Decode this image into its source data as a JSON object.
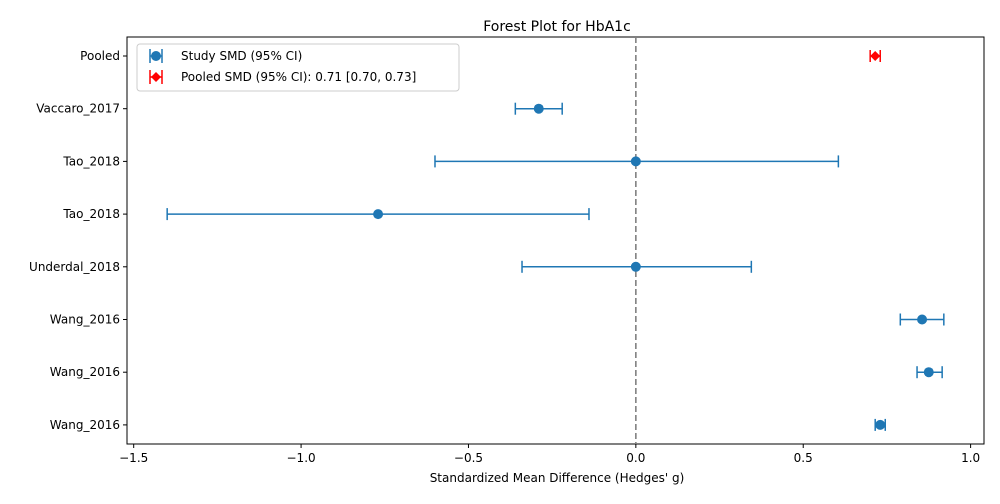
{
  "chart_data": {
    "type": "forest",
    "title": "Forest Plot for HbA1c",
    "xlabel": "Standardized Mean Difference (Hedges' g)",
    "ylabel": "",
    "xlim": [
      -1.52,
      1.04
    ],
    "xticks": [
      -1.5,
      -1.0,
      -0.5,
      0.0,
      0.5,
      1.0
    ],
    "xtick_labels": [
      "−1.5",
      "−1.0",
      "−0.5",
      "0.0",
      "0.5",
      "1.0"
    ],
    "reference_line": 0,
    "grid": false,
    "legend_position": "top-left",
    "colors": {
      "study": "#1f77b4",
      "pooled": "#ff0000",
      "reference": "#808080"
    },
    "rows": [
      {
        "label": "Pooled",
        "est": 0.715,
        "lo": 0.7,
        "hi": 0.73,
        "kind": "pooled"
      },
      {
        "label": "Vaccaro_2017",
        "est": -0.29,
        "lo": -0.36,
        "hi": -0.22,
        "kind": "study"
      },
      {
        "label": "Tao_2018",
        "est": 0.0,
        "lo": -0.6,
        "hi": 0.605,
        "kind": "study"
      },
      {
        "label": "Tao_2018",
        "est": -0.77,
        "lo": -1.4,
        "hi": -0.14,
        "kind": "study"
      },
      {
        "label": "Underdal_2018",
        "est": 0.0,
        "lo": -0.34,
        "hi": 0.345,
        "kind": "study"
      },
      {
        "label": "Wang_2016",
        "est": 0.855,
        "lo": 0.79,
        "hi": 0.92,
        "kind": "study"
      },
      {
        "label": "Wang_2016",
        "est": 0.875,
        "lo": 0.84,
        "hi": 0.915,
        "kind": "study"
      },
      {
        "label": "Wang_2016",
        "est": 0.73,
        "lo": 0.715,
        "hi": 0.745,
        "kind": "study"
      }
    ],
    "legend": [
      {
        "label": "Study SMD (95% CI)",
        "kind": "study"
      },
      {
        "label": "Pooled SMD (95% CI): 0.71 [0.70, 0.73]",
        "kind": "pooled"
      }
    ]
  }
}
